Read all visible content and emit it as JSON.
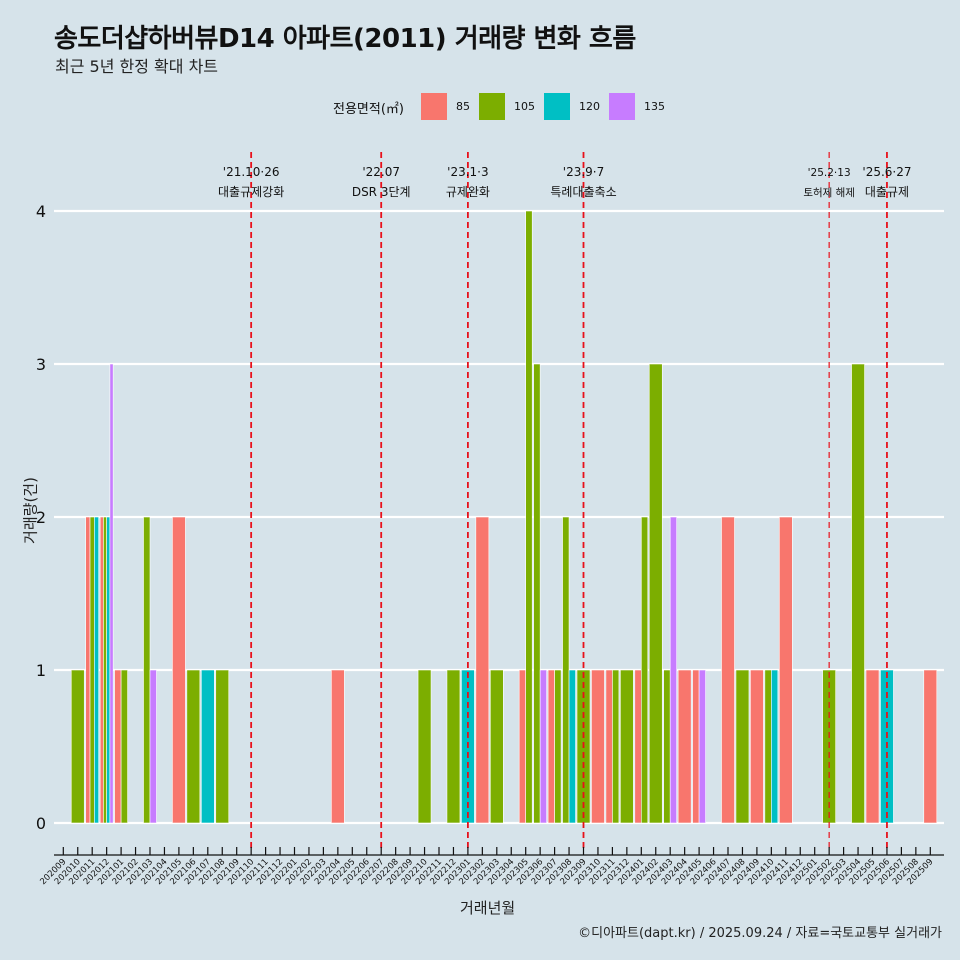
{
  "title": "송도더샵하버뷰D14 아파트(2011) 거래량 변화 흐름",
  "subtitle": "최근 5년 한정 확대 차트",
  "caption": "©디아파트(dapt.kr) / 2025.09.24 / 자료=국토교통부 실거래가",
  "legend": {
    "title": "전용면적(㎡)",
    "items": [
      {
        "label": "85",
        "color": "#F8766D"
      },
      {
        "label": "105",
        "color": "#7CAE00"
      },
      {
        "label": "120",
        "color": "#00BFC4"
      },
      {
        "label": "135",
        "color": "#C77CFF"
      }
    ]
  },
  "chart_data": {
    "type": "bar",
    "title": "송도더샵하버뷰D14 아파트(2011) 거래량 변화 흐름",
    "xlabel": "거래년월",
    "ylabel": "거래량(건)",
    "ylim": [
      0,
      4
    ],
    "yticks": [
      0,
      1,
      2,
      3,
      4
    ],
    "grid": true,
    "legend_position": "top",
    "categories": [
      "202009",
      "202010",
      "202011",
      "202012",
      "202101",
      "202102",
      "202103",
      "202104",
      "202105",
      "202106",
      "202107",
      "202108",
      "202109",
      "202110",
      "202111",
      "202112",
      "202201",
      "202202",
      "202203",
      "202204",
      "202205",
      "202206",
      "202207",
      "202208",
      "202209",
      "202210",
      "202211",
      "202212",
      "202301",
      "202302",
      "202303",
      "202304",
      "202305",
      "202306",
      "202307",
      "202308",
      "202309",
      "202310",
      "202311",
      "202312",
      "202401",
      "202402",
      "202403",
      "202404",
      "202405",
      "202406",
      "202407",
      "202408",
      "202409",
      "202410",
      "202411",
      "202412",
      "202501",
      "202502",
      "202503",
      "202504",
      "202505",
      "202506",
      "202507",
      "202508",
      "202509"
    ],
    "bars": [
      {
        "month": "202010",
        "area": "105",
        "count": 1
      },
      {
        "month": "202011",
        "area": "85",
        "count": 2
      },
      {
        "month": "202011",
        "area": "105",
        "count": 2
      },
      {
        "month": "202011",
        "area": "120",
        "count": 2
      },
      {
        "month": "202012",
        "area": "85",
        "count": 2
      },
      {
        "month": "202012",
        "area": "105",
        "count": 2
      },
      {
        "month": "202012",
        "area": "120",
        "count": 2
      },
      {
        "month": "202012",
        "area": "135",
        "count": 3
      },
      {
        "month": "202101",
        "area": "85",
        "count": 1
      },
      {
        "month": "202101",
        "area": "105",
        "count": 1
      },
      {
        "month": "202103",
        "area": "105",
        "count": 2
      },
      {
        "month": "202103",
        "area": "135",
        "count": 1
      },
      {
        "month": "202105",
        "area": "85",
        "count": 2
      },
      {
        "month": "202106",
        "area": "105",
        "count": 1
      },
      {
        "month": "202107",
        "area": "120",
        "count": 1
      },
      {
        "month": "202108",
        "area": "105",
        "count": 1
      },
      {
        "month": "202204",
        "area": "85",
        "count": 1
      },
      {
        "month": "202210",
        "area": "105",
        "count": 1
      },
      {
        "month": "202212",
        "area": "105",
        "count": 1
      },
      {
        "month": "202301",
        "area": "120",
        "count": 1
      },
      {
        "month": "202302",
        "area": "85",
        "count": 2
      },
      {
        "month": "202303",
        "area": "105",
        "count": 1
      },
      {
        "month": "202305",
        "area": "85",
        "count": 1
      },
      {
        "month": "202305",
        "area": "105",
        "count": 4
      },
      {
        "month": "202306",
        "area": "105",
        "count": 3
      },
      {
        "month": "202306",
        "area": "135",
        "count": 1
      },
      {
        "month": "202307",
        "area": "85",
        "count": 1
      },
      {
        "month": "202307",
        "area": "105",
        "count": 1
      },
      {
        "month": "202308",
        "area": "105",
        "count": 2
      },
      {
        "month": "202308",
        "area": "120",
        "count": 1
      },
      {
        "month": "202309",
        "area": "105",
        "count": 1
      },
      {
        "month": "202310",
        "area": "85",
        "count": 1
      },
      {
        "month": "202311",
        "area": "85",
        "count": 1
      },
      {
        "month": "202311",
        "area": "105",
        "count": 1
      },
      {
        "month": "202312",
        "area": "105",
        "count": 1
      },
      {
        "month": "202401",
        "area": "85",
        "count": 1
      },
      {
        "month": "202401",
        "area": "105",
        "count": 2
      },
      {
        "month": "202402",
        "area": "105",
        "count": 3
      },
      {
        "month": "202403",
        "area": "105",
        "count": 1
      },
      {
        "month": "202403",
        "area": "135",
        "count": 2
      },
      {
        "month": "202404",
        "area": "85",
        "count": 1
      },
      {
        "month": "202405",
        "area": "85",
        "count": 1
      },
      {
        "month": "202405",
        "area": "135",
        "count": 1
      },
      {
        "month": "202407",
        "area": "85",
        "count": 2
      },
      {
        "month": "202408",
        "area": "105",
        "count": 1
      },
      {
        "month": "202409",
        "area": "85",
        "count": 1
      },
      {
        "month": "202410",
        "area": "105",
        "count": 1
      },
      {
        "month": "202410",
        "area": "120",
        "count": 1
      },
      {
        "month": "202411",
        "area": "85",
        "count": 2
      },
      {
        "month": "202502",
        "area": "105",
        "count": 1
      },
      {
        "month": "202504",
        "area": "105",
        "count": 3
      },
      {
        "month": "202505",
        "area": "85",
        "count": 1
      },
      {
        "month": "202506",
        "area": "120",
        "count": 1
      },
      {
        "month": "202509",
        "area": "85",
        "count": 1
      }
    ],
    "events": [
      {
        "month": "202110",
        "date": "'21.10·26",
        "label": "대출규제강화",
        "small": false
      },
      {
        "month": "202207",
        "date": "'22.07",
        "label": "DSR 3단계",
        "small": false
      },
      {
        "month": "202301",
        "date": "'23.1·3",
        "label": "규제완화",
        "small": false
      },
      {
        "month": "202309",
        "date": "'23.9·7",
        "label": "특례대출축소",
        "small": false
      },
      {
        "month": "202502",
        "date": "'25.2·13",
        "label": "토허제 해제",
        "small": true
      },
      {
        "month": "202506",
        "date": "'25.6·27",
        "label": "대출규제",
        "small": false
      }
    ],
    "event_line_color": "#E8101A"
  }
}
